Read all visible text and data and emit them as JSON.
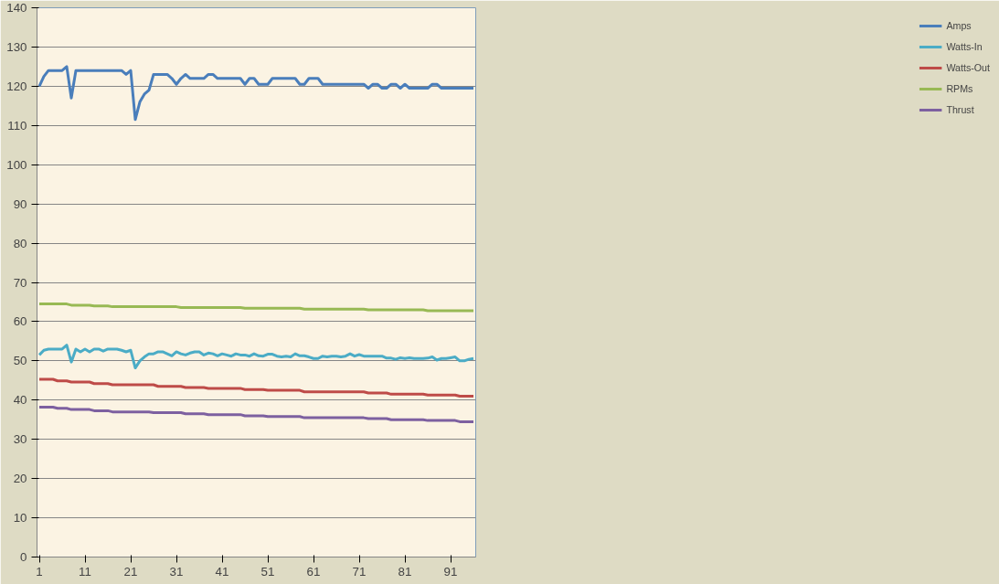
{
  "chart_data": {
    "type": "line",
    "x": [
      1,
      2,
      3,
      4,
      5,
      6,
      7,
      8,
      9,
      10,
      11,
      12,
      13,
      14,
      15,
      16,
      17,
      18,
      19,
      20,
      21,
      22,
      23,
      24,
      25,
      26,
      27,
      28,
      29,
      30,
      31,
      32,
      33,
      34,
      35,
      36,
      37,
      38,
      39,
      40,
      41,
      42,
      43,
      44,
      45,
      46,
      47,
      48,
      49,
      50,
      51,
      52,
      53,
      54,
      55,
      56,
      57,
      58,
      59,
      60,
      61,
      62,
      63,
      64,
      65,
      66,
      67,
      68,
      69,
      70,
      71,
      72,
      73,
      74,
      75,
      76,
      77,
      78,
      79,
      80,
      81,
      82,
      83,
      84,
      85,
      86,
      87,
      88,
      89,
      90,
      91,
      92,
      93,
      94,
      95,
      96
    ],
    "xlim": [
      0.5,
      96.5
    ],
    "xticks": [
      1,
      11,
      21,
      31,
      41,
      51,
      61,
      71,
      81,
      91
    ],
    "ylim": [
      0,
      140
    ],
    "yticks": [
      0,
      10,
      20,
      30,
      40,
      50,
      60,
      70,
      80,
      90,
      100,
      110,
      120,
      130,
      140
    ],
    "grid": "y",
    "legend": "right",
    "marker": "none",
    "line_style": "solid",
    "series": [
      {
        "name": "Amps",
        "color": "#4a7ebb",
        "values": [
          120,
          122.5,
          124,
          124,
          124,
          124,
          125,
          117,
          124,
          124,
          124,
          124,
          124,
          124,
          124,
          124,
          124,
          124,
          124,
          123,
          124,
          111.5,
          116,
          118,
          119,
          123,
          123,
          123,
          123,
          122,
          120.5,
          122,
          123,
          122,
          122,
          122,
          122,
          123,
          123,
          122,
          122,
          122,
          122,
          122,
          122,
          120.5,
          122,
          122,
          120.5,
          120.5,
          120.5,
          122,
          122,
          122,
          122,
          122,
          122,
          120.5,
          120.5,
          122,
          122,
          122,
          120.5,
          120.5,
          120.5,
          120.5,
          120.5,
          120.5,
          120.5,
          120.5,
          120.5,
          120.5,
          119.5,
          120.5,
          120.5,
          119.5,
          119.5,
          120.5,
          120.5,
          119.5,
          120.5,
          119.5,
          119.5,
          119.5,
          119.5,
          119.5,
          120.5,
          120.5,
          119.5,
          119.5,
          119.5,
          119.5,
          119.5,
          119.5,
          119.5,
          119.5
        ]
      },
      {
        "name": "Watts-In",
        "color": "#4bacc6",
        "values": [
          51.5,
          52.7,
          53,
          53,
          53,
          53,
          54,
          49.7,
          53,
          52.3,
          53,
          52.3,
          53,
          53,
          52.5,
          53,
          53,
          53,
          52.7,
          52.3,
          52.7,
          48.2,
          50,
          51,
          51.8,
          51.8,
          52.3,
          52.3,
          51.8,
          51.3,
          52.3,
          51.8,
          51.5,
          52,
          52.3,
          52.3,
          51.5,
          52,
          51.8,
          51.3,
          51.8,
          51.5,
          51.2,
          51.8,
          51.5,
          51.5,
          51.2,
          51.8,
          51.3,
          51.2,
          51.7,
          51.7,
          51.2,
          51,
          51.2,
          51,
          51.8,
          51.3,
          51.3,
          51,
          50.6,
          50.6,
          51.2,
          51,
          51.2,
          51.2,
          51,
          51.2,
          51.8,
          51.2,
          51.6,
          51.2,
          51.2,
          51.2,
          51.2,
          51.2,
          50.7,
          50.7,
          50.4,
          50.8,
          50.6,
          50.8,
          50.6,
          50.6,
          50.6,
          50.7,
          51,
          50.2,
          50.6,
          50.6,
          50.8,
          51,
          50,
          50,
          50.4,
          50.6
        ]
      },
      {
        "name": "Watts-Out",
        "color": "#be4b48",
        "values": [
          45.3,
          45.3,
          45.3,
          45.3,
          44.9,
          44.9,
          44.9,
          44.6,
          44.6,
          44.6,
          44.6,
          44.6,
          44.2,
          44.2,
          44.2,
          44.2,
          43.9,
          43.9,
          43.9,
          43.9,
          43.9,
          43.9,
          43.9,
          43.9,
          43.9,
          43.9,
          43.5,
          43.5,
          43.5,
          43.5,
          43.5,
          43.5,
          43.2,
          43.2,
          43.2,
          43.2,
          43.2,
          43,
          43,
          43,
          43,
          43,
          43,
          43,
          43,
          42.7,
          42.7,
          42.7,
          42.7,
          42.7,
          42.5,
          42.5,
          42.5,
          42.5,
          42.5,
          42.5,
          42.5,
          42.5,
          42.1,
          42.1,
          42.1,
          42.1,
          42.1,
          42.1,
          42.1,
          42.1,
          42.1,
          42.1,
          42.1,
          42.1,
          42.1,
          42.1,
          41.8,
          41.8,
          41.8,
          41.8,
          41.8,
          41.5,
          41.5,
          41.5,
          41.5,
          41.5,
          41.5,
          41.5,
          41.5,
          41.3,
          41.3,
          41.3,
          41.3,
          41.3,
          41.3,
          41.3,
          41,
          41,
          41,
          41
        ]
      },
      {
        "name": "RPMs",
        "color": "#98b954",
        "values": [
          64.5,
          64.5,
          64.5,
          64.5,
          64.5,
          64.5,
          64.5,
          64.2,
          64.2,
          64.2,
          64.2,
          64.2,
          64,
          64,
          64,
          64,
          63.8,
          63.8,
          63.8,
          63.8,
          63.8,
          63.8,
          63.8,
          63.8,
          63.8,
          63.8,
          63.8,
          63.8,
          63.8,
          63.8,
          63.8,
          63.6,
          63.6,
          63.6,
          63.6,
          63.6,
          63.6,
          63.6,
          63.6,
          63.6,
          63.6,
          63.6,
          63.6,
          63.6,
          63.6,
          63.4,
          63.4,
          63.4,
          63.4,
          63.4,
          63.4,
          63.4,
          63.4,
          63.4,
          63.4,
          63.4,
          63.4,
          63.4,
          63.2,
          63.2,
          63.2,
          63.2,
          63.2,
          63.2,
          63.2,
          63.2,
          63.2,
          63.2,
          63.2,
          63.2,
          63.2,
          63.2,
          63,
          63,
          63,
          63,
          63,
          63,
          63,
          63,
          63,
          63,
          63,
          63,
          63,
          62.8,
          62.8,
          62.8,
          62.8,
          62.8,
          62.8,
          62.8,
          62.8,
          62.8,
          62.8,
          62.8
        ]
      },
      {
        "name": "Thrust",
        "color": "#7d60a0",
        "values": [
          38.2,
          38.2,
          38.2,
          38.2,
          37.9,
          37.9,
          37.9,
          37.6,
          37.6,
          37.6,
          37.6,
          37.6,
          37.3,
          37.3,
          37.3,
          37.3,
          37,
          37,
          37,
          37,
          37,
          37,
          37,
          37,
          37,
          36.8,
          36.8,
          36.8,
          36.8,
          36.8,
          36.8,
          36.8,
          36.5,
          36.5,
          36.5,
          36.5,
          36.5,
          36.3,
          36.3,
          36.3,
          36.3,
          36.3,
          36.3,
          36.3,
          36.3,
          36,
          36,
          36,
          36,
          36,
          35.8,
          35.8,
          35.8,
          35.8,
          35.8,
          35.8,
          35.8,
          35.8,
          35.5,
          35.5,
          35.5,
          35.5,
          35.5,
          35.5,
          35.5,
          35.5,
          35.5,
          35.5,
          35.5,
          35.5,
          35.5,
          35.5,
          35.3,
          35.3,
          35.3,
          35.3,
          35.3,
          35,
          35,
          35,
          35,
          35,
          35,
          35,
          35,
          34.8,
          34.8,
          34.8,
          34.8,
          34.8,
          34.8,
          34.8,
          34.5,
          34.5,
          34.5,
          34.5
        ]
      }
    ]
  }
}
